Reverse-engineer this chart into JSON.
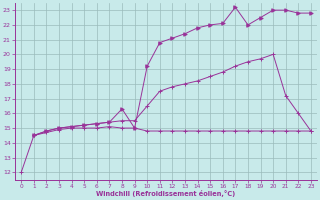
{
  "xlabel": "Windchill (Refroidissement éolien,°C)",
  "bg_color": "#c8eaea",
  "grid_color": "#9bbcbc",
  "line_color": "#993399",
  "xlim": [
    -0.5,
    23.5
  ],
  "ylim": [
    11.5,
    23.5
  ],
  "xticks": [
    0,
    1,
    2,
    3,
    4,
    5,
    6,
    7,
    8,
    9,
    10,
    11,
    12,
    13,
    14,
    15,
    16,
    17,
    18,
    19,
    20,
    21,
    22,
    23
  ],
  "yticks": [
    12,
    13,
    14,
    15,
    16,
    17,
    18,
    19,
    20,
    21,
    22,
    23
  ],
  "line1_x": [
    0,
    1,
    2,
    3,
    4,
    5,
    6,
    7,
    8,
    9,
    10,
    11,
    12,
    13,
    14,
    15,
    16,
    17,
    18,
    19,
    20,
    21,
    22,
    23
  ],
  "line1_y": [
    12.0,
    14.5,
    14.7,
    14.9,
    15.0,
    15.0,
    15.0,
    15.1,
    15.0,
    15.0,
    14.8,
    14.8,
    14.8,
    14.8,
    14.8,
    14.8,
    14.8,
    14.8,
    14.8,
    14.8,
    14.8,
    14.8,
    14.8,
    14.8
  ],
  "line2_x": [
    1,
    2,
    3,
    4,
    5,
    6,
    7,
    8,
    9,
    10,
    11,
    12,
    13,
    14,
    15,
    16,
    17,
    18,
    19,
    20,
    21,
    22,
    23
  ],
  "line2_y": [
    14.5,
    14.8,
    15.0,
    15.1,
    15.2,
    15.3,
    15.4,
    15.5,
    15.5,
    16.5,
    17.5,
    17.8,
    18.0,
    18.2,
    18.5,
    18.8,
    19.2,
    19.5,
    19.7,
    20.0,
    17.2,
    16.0,
    14.8
  ],
  "line3_x": [
    1,
    2,
    3,
    4,
    5,
    6,
    7,
    8,
    9,
    10,
    11,
    12,
    13,
    14,
    15,
    16,
    17,
    18,
    19,
    20,
    21,
    22,
    23
  ],
  "line3_y": [
    14.5,
    14.8,
    15.0,
    15.1,
    15.2,
    15.3,
    15.4,
    16.3,
    15.0,
    19.2,
    20.8,
    21.1,
    21.4,
    21.8,
    22.0,
    22.1,
    23.2,
    22.0,
    22.5,
    23.0,
    23.0,
    22.8,
    22.8
  ]
}
